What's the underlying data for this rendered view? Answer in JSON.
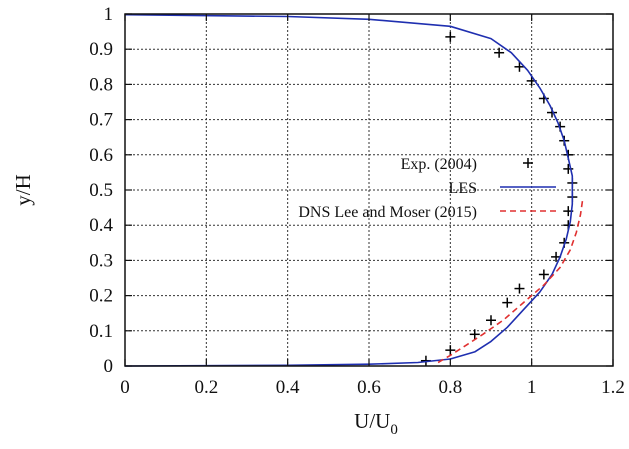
{
  "chart_data": {
    "type": "line",
    "xlabel": "U/U",
    "xlabel_sub": "0",
    "ylabel": "y/H",
    "xlim": [
      0,
      1.2
    ],
    "ylim": [
      0,
      1
    ],
    "xticks": [
      "0",
      "0.2",
      "0.4",
      "0.6",
      "0.8",
      "1",
      "1.2"
    ],
    "yticks": [
      "0",
      "0.1",
      "0.2",
      "0.3",
      "0.4",
      "0.5",
      "0.6",
      "0.7",
      "0.8",
      "0.9",
      "1"
    ],
    "grid": true,
    "legend_position": "right",
    "series": [
      {
        "name": "Exp. (2004)",
        "style": "markers-plus",
        "color": "#000000",
        "points": [
          [
            0.74,
            0.015
          ],
          [
            0.8,
            0.045
          ],
          [
            0.86,
            0.09
          ],
          [
            0.9,
            0.13
          ],
          [
            0.94,
            0.18
          ],
          [
            0.97,
            0.22
          ],
          [
            1.03,
            0.26
          ],
          [
            1.06,
            0.31
          ],
          [
            1.08,
            0.35
          ],
          [
            1.09,
            0.4
          ],
          [
            1.09,
            0.44
          ],
          [
            1.1,
            0.48
          ],
          [
            1.1,
            0.52
          ],
          [
            1.09,
            0.56
          ],
          [
            1.09,
            0.6
          ],
          [
            1.08,
            0.64
          ],
          [
            1.07,
            0.68
          ],
          [
            1.05,
            0.72
          ],
          [
            1.03,
            0.76
          ],
          [
            1.0,
            0.81
          ],
          [
            0.97,
            0.85
          ],
          [
            0.92,
            0.89
          ],
          [
            0.8,
            0.935
          ]
        ]
      },
      {
        "name": "LES",
        "style": "solid",
        "color": "#1f2fb0",
        "points": [
          [
            0.0,
            0.0
          ],
          [
            0.4,
            0.002
          ],
          [
            0.6,
            0.005
          ],
          [
            0.72,
            0.01
          ],
          [
            0.8,
            0.02
          ],
          [
            0.86,
            0.04
          ],
          [
            0.9,
            0.07
          ],
          [
            0.94,
            0.11
          ],
          [
            0.98,
            0.16
          ],
          [
            1.02,
            0.21
          ],
          [
            1.05,
            0.26
          ],
          [
            1.07,
            0.31
          ],
          [
            1.085,
            0.36
          ],
          [
            1.095,
            0.41
          ],
          [
            1.1,
            0.46
          ],
          [
            1.1,
            0.5
          ],
          [
            1.1,
            0.54
          ],
          [
            1.09,
            0.59
          ],
          [
            1.08,
            0.64
          ],
          [
            1.065,
            0.69
          ],
          [
            1.045,
            0.74
          ],
          [
            1.02,
            0.79
          ],
          [
            0.99,
            0.84
          ],
          [
            0.95,
            0.89
          ],
          [
            0.9,
            0.93
          ],
          [
            0.8,
            0.965
          ],
          [
            0.6,
            0.985
          ],
          [
            0.4,
            0.993
          ],
          [
            0.0,
            0.998
          ]
        ]
      },
      {
        "name": "DNS Lee and Moser (2015)",
        "style": "dashed",
        "color": "#e03030",
        "points": [
          [
            0.77,
            0.01
          ],
          [
            0.8,
            0.03
          ],
          [
            0.84,
            0.06
          ],
          [
            0.88,
            0.09
          ],
          [
            0.93,
            0.13
          ],
          [
            0.98,
            0.18
          ],
          [
            1.03,
            0.23
          ],
          [
            1.07,
            0.28
          ],
          [
            1.095,
            0.33
          ],
          [
            1.11,
            0.38
          ],
          [
            1.12,
            0.43
          ],
          [
            1.125,
            0.47
          ]
        ]
      }
    ]
  }
}
